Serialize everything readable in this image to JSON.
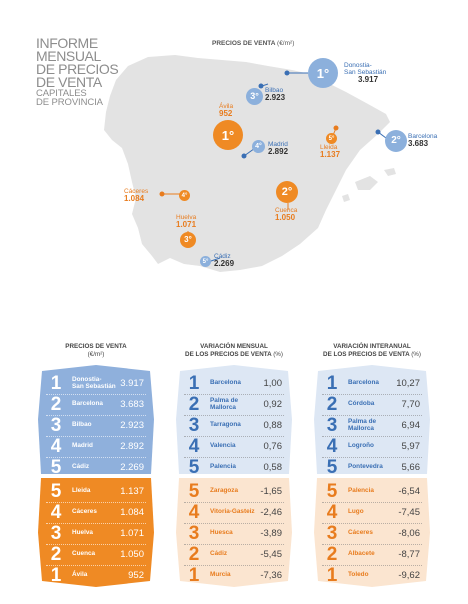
{
  "title": {
    "line1": "INFORME",
    "line2": "MENSUAL",
    "line3": "DE PRECIOS",
    "line4": "DE VENTA",
    "sub1": "CAPITALES",
    "sub2": "DE PROVINCIA"
  },
  "map": {
    "heading": "PRECIOS DE VENTA",
    "heading_unit": "(€/m²)",
    "cities": [
      {
        "id": "donostia",
        "rank": "1°",
        "group": "top",
        "name_line1": "Donostia-",
        "name_line2": "San Sebastián",
        "value": "3.917"
      },
      {
        "id": "bilbao",
        "rank": "3°",
        "group": "top",
        "name_line1": "Bilbao",
        "name_line2": "",
        "value": "2.923"
      },
      {
        "id": "madrid",
        "rank": "4°",
        "group": "top",
        "name_line1": "Madrid",
        "name_line2": "",
        "value": "2.892"
      },
      {
        "id": "barcelona",
        "rank": "2°",
        "group": "top",
        "name_line1": "Barcelona",
        "name_line2": "",
        "value": "3.683"
      },
      {
        "id": "cadiz",
        "rank": "5°",
        "group": "top",
        "name_line1": "Cádiz",
        "name_line2": "",
        "value": "2.269"
      },
      {
        "id": "avila",
        "rank": "1°",
        "group": "bottom",
        "name_line1": "Ávila",
        "name_line2": "",
        "value": "952"
      },
      {
        "id": "lleida",
        "rank": "5°",
        "group": "bottom",
        "name_line1": "Lleida",
        "name_line2": "",
        "value": "1.137"
      },
      {
        "id": "cuenca",
        "rank": "2°",
        "group": "bottom",
        "name_line1": "Cuenca",
        "name_line2": "",
        "value": "1.050"
      },
      {
        "id": "caceres",
        "rank": "4°",
        "group": "bottom",
        "name_line1": "Cáceres",
        "name_line2": "",
        "value": "1.084"
      },
      {
        "id": "huelva",
        "rank": "3°",
        "group": "bottom",
        "name_line1": "Huelva",
        "name_line2": "",
        "value": "1.071"
      }
    ]
  },
  "tables": {
    "col1_head": "PRECIOS DE VENTA",
    "col1_unit": "(€/m²)",
    "col2_head1": "VARIACIÓN MENSUAL",
    "col2_head2": "DE LOS PRECIOS DE VENTA",
    "col2_unit": "(%)",
    "col3_head1": "VARIACIÓN INTERANUAL",
    "col3_head2": "DE LOS PRECIOS DE VENTA",
    "col3_unit": "(%)"
  },
  "colors": {
    "blue_panel": "#8fb0dc",
    "orange_panel": "#ef8a24",
    "light_blue": "#dde7f4",
    "light_orange": "#fbe5d0",
    "map_gray": "#e3e3e3"
  },
  "chart_data": [
    {
      "type": "table",
      "title": "PRECIOS DE VENTA",
      "unit": "(€/m²)",
      "top": [
        {
          "rank": "1",
          "city": "Donostia-\nSan Sebastián",
          "value": "3.917"
        },
        {
          "rank": "2",
          "city": "Barcelona",
          "value": "3.683"
        },
        {
          "rank": "3",
          "city": "Bilbao",
          "value": "2.923"
        },
        {
          "rank": "4",
          "city": "Madrid",
          "value": "2.892"
        },
        {
          "rank": "5",
          "city": "Cádiz",
          "value": "2.269"
        }
      ],
      "bottom": [
        {
          "rank": "5",
          "city": "Lleida",
          "value": "1.137"
        },
        {
          "rank": "4",
          "city": "Cáceres",
          "value": "1.084"
        },
        {
          "rank": "3",
          "city": "Huelva",
          "value": "1.071"
        },
        {
          "rank": "2",
          "city": "Cuenca",
          "value": "1.050"
        },
        {
          "rank": "1",
          "city": "Ávila",
          "value": "952"
        }
      ]
    },
    {
      "type": "table",
      "title": "VARIACIÓN MENSUAL DE LOS PRECIOS DE VENTA",
      "unit": "(%)",
      "top": [
        {
          "rank": "1",
          "city": "Barcelona",
          "value": "1,00"
        },
        {
          "rank": "2",
          "city": "Palma de\nMallorca",
          "value": "0,92"
        },
        {
          "rank": "3",
          "city": "Tarragona",
          "value": "0,88"
        },
        {
          "rank": "4",
          "city": "Valencia",
          "value": "0,76"
        },
        {
          "rank": "5",
          "city": "Palencia",
          "value": "0,58"
        }
      ],
      "bottom": [
        {
          "rank": "5",
          "city": "Zaragoza",
          "value": "-1,65"
        },
        {
          "rank": "4",
          "city": "Vitoria-Gasteiz",
          "value": "-2,46"
        },
        {
          "rank": "3",
          "city": "Huesca",
          "value": "-3,89"
        },
        {
          "rank": "2",
          "city": "Cádiz",
          "value": "-5,45"
        },
        {
          "rank": "1",
          "city": "Murcia",
          "value": "-7,36"
        }
      ]
    },
    {
      "type": "table",
      "title": "VARIACIÓN INTERANUAL DE LOS PRECIOS DE VENTA",
      "unit": "(%)",
      "top": [
        {
          "rank": "1",
          "city": "Barcelona",
          "value": "10,27"
        },
        {
          "rank": "2",
          "city": "Córdoba",
          "value": "7,70"
        },
        {
          "rank": "3",
          "city": "Palma de\nMallorca",
          "value": "6,94"
        },
        {
          "rank": "4",
          "city": "Logroño",
          "value": "5,97"
        },
        {
          "rank": "5",
          "city": "Pontevedra",
          "value": "5,66"
        }
      ],
      "bottom": [
        {
          "rank": "5",
          "city": "Palencia",
          "value": "-6,54"
        },
        {
          "rank": "4",
          "city": "Lugo",
          "value": "-7,45"
        },
        {
          "rank": "3",
          "city": "Cáceres",
          "value": "-8,06"
        },
        {
          "rank": "2",
          "city": "Albacete",
          "value": "-8,77"
        },
        {
          "rank": "1",
          "city": "Toledo",
          "value": "-9,62"
        }
      ]
    }
  ]
}
